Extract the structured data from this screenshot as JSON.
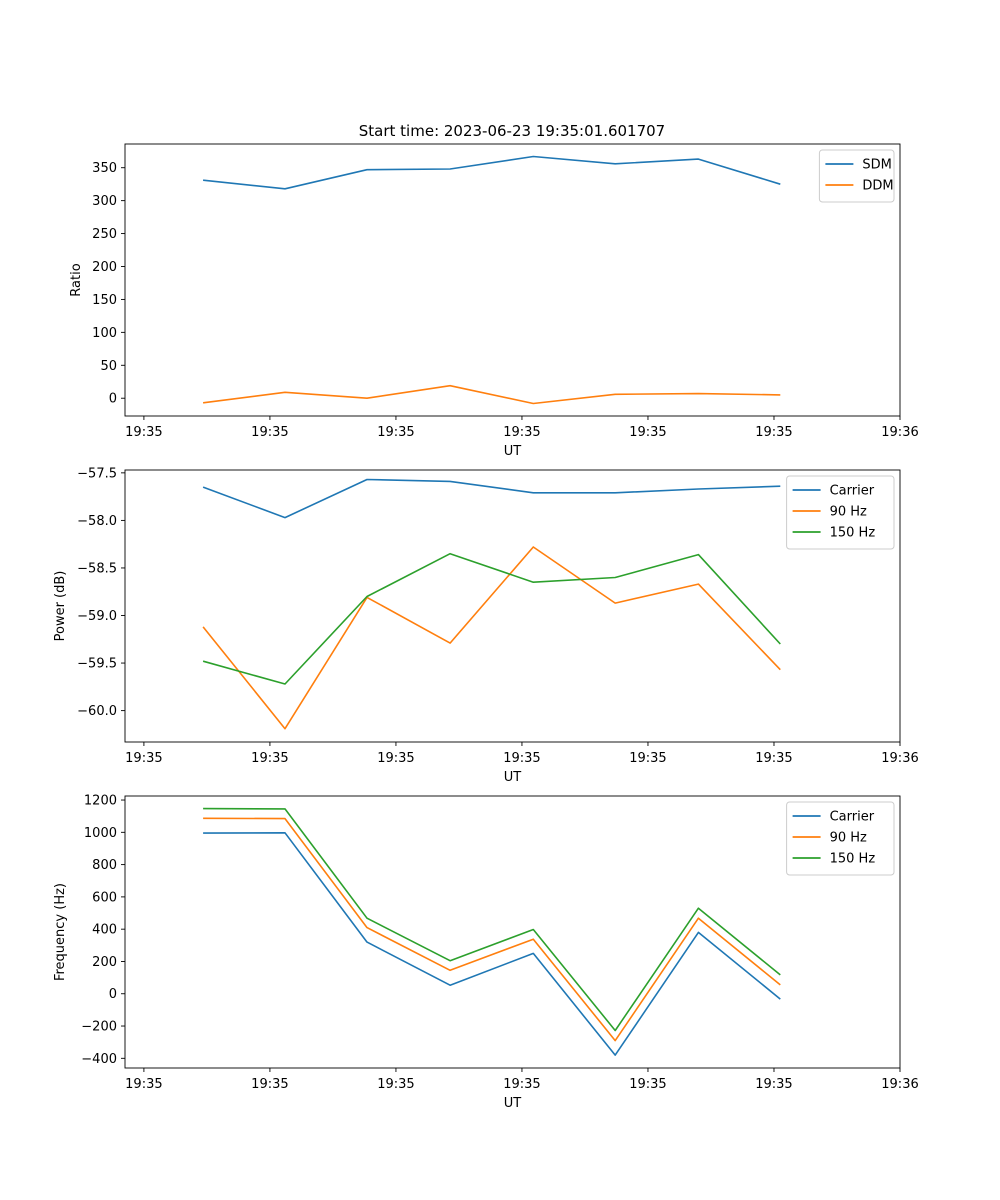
{
  "title": "Start time: 2023-06-23 19:35:01.601707",
  "chart_data": [
    {
      "type": "line",
      "xlabel": "UT",
      "ylabel": "Ratio",
      "x_tick_labels": [
        "19:35",
        "19:35",
        "19:35",
        "19:35",
        "19:35",
        "19:35",
        "19:36"
      ],
      "x_ticks": [
        0,
        1,
        2,
        3,
        4,
        5,
        6
      ],
      "xlim": [
        -0.15,
        6.0
      ],
      "y_ticks": [
        0,
        50,
        100,
        150,
        200,
        250,
        300,
        350
      ],
      "y_tick_labels": [
        "0",
        "50",
        "100",
        "150",
        "200",
        "250",
        "300",
        "350"
      ],
      "ylim": [
        -27,
        386
      ],
      "x": [
        0.47,
        1.12,
        1.77,
        2.43,
        3.09,
        3.74,
        4.4,
        5.05
      ],
      "series": [
        {
          "name": "SDM",
          "color": "#1f77b4",
          "values": [
            331,
            318,
            347,
            348,
            367,
            356,
            363,
            325
          ]
        },
        {
          "name": "DDM",
          "color": "#ff7f0e",
          "values": [
            -7,
            9,
            0,
            19,
            -8,
            6,
            7,
            5
          ]
        }
      ],
      "legend": "top-right"
    },
    {
      "type": "line",
      "xlabel": "UT",
      "ylabel": "Power (dB)",
      "x_tick_labels": [
        "19:35",
        "19:35",
        "19:35",
        "19:35",
        "19:35",
        "19:35",
        "19:36"
      ],
      "x_ticks": [
        0,
        1,
        2,
        3,
        4,
        5,
        6
      ],
      "xlim": [
        -0.15,
        6.0
      ],
      "y_ticks": [
        -60.0,
        -59.5,
        -59.0,
        -58.5,
        -58.0,
        -57.5
      ],
      "y_tick_labels": [
        "−60.0",
        "−59.5",
        "−59.0",
        "−58.5",
        "−58.0",
        "−57.5"
      ],
      "ylim": [
        -60.33,
        -57.47
      ],
      "x": [
        0.47,
        1.12,
        1.77,
        2.43,
        3.09,
        3.74,
        4.4,
        5.05
      ],
      "series": [
        {
          "name": "Carrier",
          "color": "#1f77b4",
          "values": [
            -57.65,
            -57.97,
            -57.57,
            -57.59,
            -57.71,
            -57.71,
            -57.67,
            -57.64
          ]
        },
        {
          "name": "90 Hz",
          "color": "#ff7f0e",
          "values": [
            -59.12,
            -60.19,
            -58.81,
            -59.29,
            -58.28,
            -58.87,
            -58.67,
            -59.57
          ]
        },
        {
          "name": "150 Hz",
          "color": "#2ca02c",
          "values": [
            -59.48,
            -59.72,
            -58.8,
            -58.35,
            -58.65,
            -58.6,
            -58.36,
            -59.3
          ]
        }
      ],
      "legend": "top-right"
    },
    {
      "type": "line",
      "xlabel": "UT",
      "ylabel": "Frequency (Hz)",
      "x_tick_labels": [
        "19:35",
        "19:35",
        "19:35",
        "19:35",
        "19:35",
        "19:35",
        "19:36"
      ],
      "x_ticks": [
        0,
        1,
        2,
        3,
        4,
        5,
        6
      ],
      "xlim": [
        -0.15,
        6.0
      ],
      "y_ticks": [
        -400,
        -200,
        0,
        200,
        400,
        600,
        800,
        1000,
        1200
      ],
      "y_tick_labels": [
        "−400",
        "−200",
        "0",
        "200",
        "400",
        "600",
        "800",
        "1000",
        "1200"
      ],
      "ylim": [
        -460,
        1225
      ],
      "x": [
        0.47,
        1.12,
        1.77,
        2.43,
        3.09,
        3.74,
        4.4,
        5.05
      ],
      "series": [
        {
          "name": "Carrier",
          "color": "#1f77b4",
          "values": [
            995,
            997,
            320,
            53,
            250,
            -380,
            380,
            -33
          ]
        },
        {
          "name": "90 Hz",
          "color": "#ff7f0e",
          "values": [
            1087,
            1085,
            410,
            145,
            338,
            -290,
            468,
            55
          ]
        },
        {
          "name": "150 Hz",
          "color": "#2ca02c",
          "values": [
            1147,
            1145,
            468,
            205,
            398,
            -228,
            530,
            117
          ]
        }
      ],
      "legend": "top-right"
    }
  ]
}
